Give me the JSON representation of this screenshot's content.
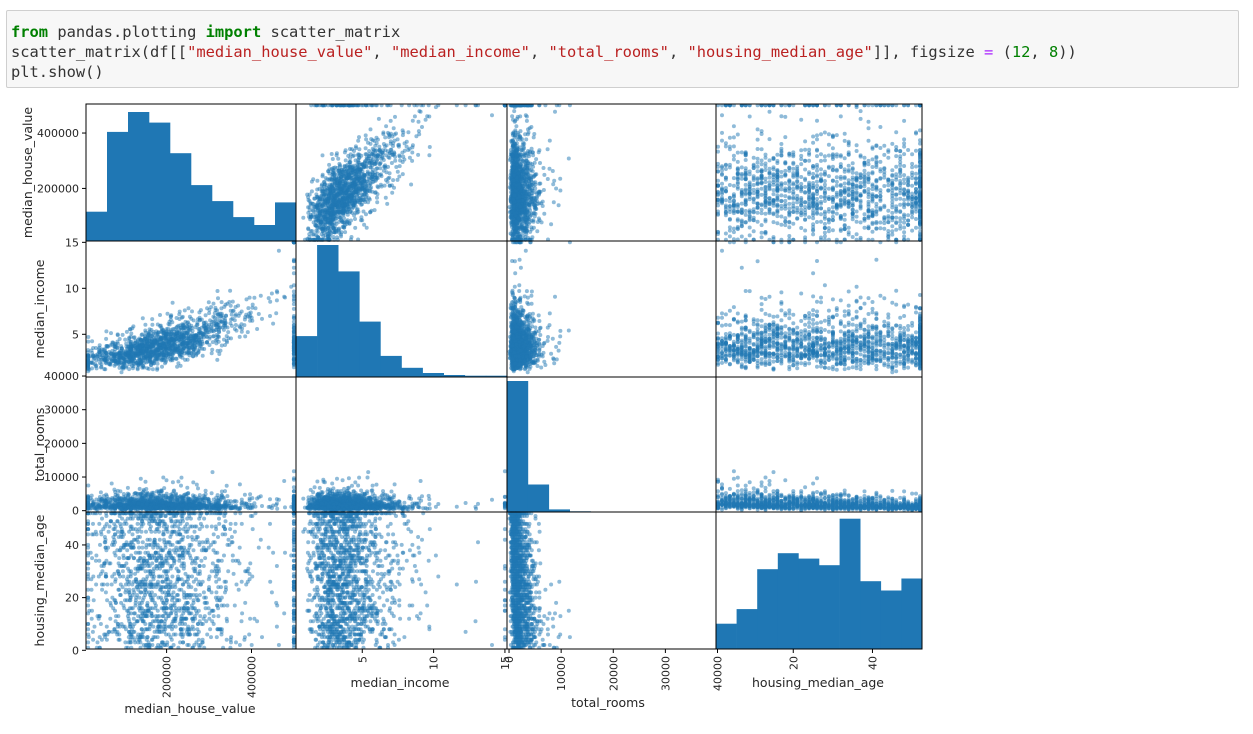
{
  "code": {
    "line1": {
      "kw1": "from",
      "mod": " pandas.plotting ",
      "kw2": "import",
      "name": " scatter_matrix"
    },
    "line2": {
      "pre": "scatter_matrix(df[[",
      "s1": "\"median_house_value\"",
      "c1": ", ",
      "s2": "\"median_income\"",
      "c2": ", ",
      "s3": "\"total_rooms\"",
      "c3": ", ",
      "s4": "\"housing_median_age\"",
      "mid": "]], figsize ",
      "eq": "=",
      "paren": " (",
      "n1": "12",
      "comma": ", ",
      "n2": "8",
      "end": "))"
    },
    "line3": "plt.show()"
  },
  "chart_data": {
    "type": "scatter",
    "subtype": "scatter_matrix",
    "color": "#1f77b4",
    "variables": [
      {
        "name": "median_house_value",
        "range": [
          14999,
          500001
        ],
        "ticks": [
          200000,
          400000
        ],
        "tick_labels": [
          "200000",
          "400000"
        ]
      },
      {
        "name": "median_income",
        "range": [
          0.5,
          15.0
        ],
        "ticks": [
          5,
          10,
          15
        ],
        "tick_labels": [
          "5",
          "10",
          "15"
        ]
      },
      {
        "name": "total_rooms",
        "range": [
          2,
          39320
        ],
        "ticks": [
          0,
          10000,
          20000,
          30000,
          40000
        ],
        "tick_labels": [
          "0",
          "10000",
          "20000",
          "30000",
          "40000"
        ]
      },
      {
        "name": "housing_median_age",
        "range": [
          1,
          52
        ],
        "ticks": [
          20,
          40
        ],
        "tick_labels": [
          "20",
          "40"
        ]
      }
    ],
    "row_axis": {
      "median_house_value": {
        "ticks": [
          200000,
          400000
        ],
        "tick_labels": [
          "200000",
          "400000"
        ]
      },
      "median_income": {
        "ticks": [
          5,
          10,
          15
        ],
        "tick_labels": [
          "5",
          "10",
          "15"
        ]
      },
      "total_rooms": {
        "ticks": [
          0,
          10000,
          20000,
          30000,
          40000
        ],
        "tick_labels": [
          "0",
          "10000",
          "20000",
          "30000",
          "40000"
        ]
      },
      "housing_median_age": {
        "ticks": [
          0,
          20,
          40
        ],
        "tick_labels": [
          "0",
          "20",
          "40"
        ]
      }
    },
    "histograms": {
      "median_house_value": [
        0.22,
        0.82,
        0.97,
        0.89,
        0.66,
        0.42,
        0.3,
        0.18,
        0.12,
        0.29
      ],
      "median_income": [
        0.31,
        1.0,
        0.8,
        0.42,
        0.16,
        0.07,
        0.03,
        0.015,
        0.01,
        0.01
      ],
      "total_rooms": [
        1.0,
        0.21,
        0.02,
        0.005,
        0.0,
        0.0,
        0.0,
        0.0,
        0.0,
        0.0
      ],
      "housing_median_age": [
        0.19,
        0.3,
        0.6,
        0.72,
        0.68,
        0.63,
        0.98,
        0.51,
        0.44,
        0.53
      ]
    },
    "grid": false
  }
}
